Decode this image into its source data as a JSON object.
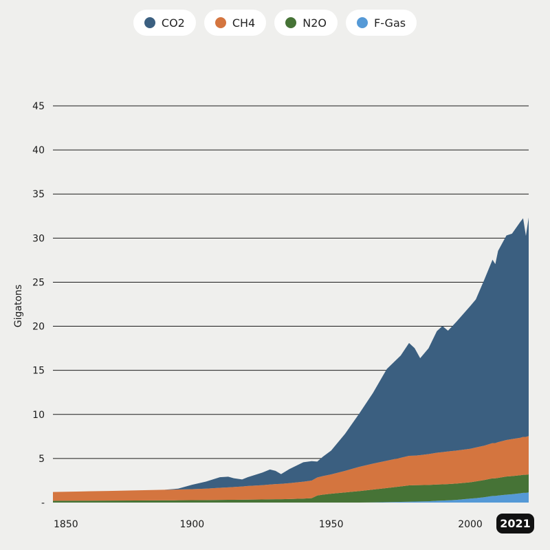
{
  "legend": [
    {
      "label": "CO2",
      "color": "#3b5f80"
    },
    {
      "label": "CH4",
      "color": "#d4753f"
    },
    {
      "label": "N2O",
      "color": "#467336"
    },
    {
      "label": "F-Gas",
      "color": "#5599d6"
    }
  ],
  "current_year": "2021",
  "chart_data": {
    "type": "area",
    "stacked": true,
    "title": "",
    "xlabel": "",
    "ylabel": "Gigatons",
    "xlim": [
      1850,
      2021
    ],
    "ylim": [
      0,
      45
    ],
    "yticks": [
      0,
      5,
      10,
      15,
      20,
      25,
      30,
      35,
      40,
      45
    ],
    "ytick_labels": [
      "-",
      "5",
      "10",
      "15",
      "20",
      "25",
      "30",
      "35",
      "40",
      "45"
    ],
    "xticks": [
      1850,
      1900,
      1950,
      2000
    ],
    "grid": "horizontal",
    "legend_position": "top-center",
    "x": [
      1850,
      1860,
      1870,
      1880,
      1890,
      1895,
      1900,
      1905,
      1910,
      1913,
      1915,
      1918,
      1920,
      1925,
      1928,
      1930,
      1932,
      1935,
      1940,
      1943,
      1945,
      1947,
      1950,
      1955,
      1960,
      1965,
      1970,
      1975,
      1978,
      1980,
      1982,
      1985,
      1988,
      1990,
      1992,
      1995,
      2000,
      2002,
      2005,
      2008,
      2009,
      2010,
      2013,
      2015,
      2018,
      2019,
      2020,
      2021
    ],
    "series": [
      {
        "name": "F-Gas",
        "values": [
          0,
          0,
          0,
          0,
          0,
          0,
          0,
          0,
          0,
          0,
          0,
          0,
          0,
          0,
          0,
          0,
          0,
          0,
          0,
          0,
          0,
          0,
          0,
          0,
          0,
          0.02,
          0.05,
          0.08,
          0.1,
          0.12,
          0.13,
          0.15,
          0.2,
          0.22,
          0.25,
          0.3,
          0.45,
          0.5,
          0.6,
          0.75,
          0.75,
          0.8,
          0.9,
          0.95,
          1.05,
          1.1,
          1.1,
          1.15
        ]
      },
      {
        "name": "N2O",
        "values": [
          0.2,
          0.21,
          0.22,
          0.23,
          0.25,
          0.26,
          0.27,
          0.28,
          0.3,
          0.31,
          0.31,
          0.32,
          0.33,
          0.35,
          0.37,
          0.38,
          0.38,
          0.4,
          0.45,
          0.5,
          0.8,
          0.9,
          1.0,
          1.15,
          1.3,
          1.45,
          1.6,
          1.75,
          1.85,
          1.85,
          1.85,
          1.85,
          1.85,
          1.85,
          1.85,
          1.85,
          1.85,
          1.9,
          1.95,
          2.0,
          2.0,
          2.0,
          2.05,
          2.05,
          2.05,
          2.05,
          2.05,
          2.05
        ]
      },
      {
        "name": "CH4",
        "values": [
          1.0,
          1.05,
          1.1,
          1.15,
          1.2,
          1.22,
          1.25,
          1.3,
          1.38,
          1.42,
          1.45,
          1.5,
          1.55,
          1.62,
          1.68,
          1.72,
          1.75,
          1.8,
          1.92,
          2.0,
          2.05,
          2.1,
          2.2,
          2.45,
          2.75,
          2.95,
          3.1,
          3.25,
          3.35,
          3.35,
          3.4,
          3.5,
          3.6,
          3.65,
          3.7,
          3.75,
          3.8,
          3.85,
          3.9,
          4.0,
          4.0,
          4.05,
          4.15,
          4.2,
          4.25,
          4.3,
          4.3,
          4.35
        ]
      },
      {
        "name": "CO2",
        "values": [
          0,
          0,
          0,
          0,
          0,
          0.1,
          0.5,
          0.8,
          1.2,
          1.2,
          1.0,
          0.8,
          1.0,
          1.4,
          1.7,
          1.5,
          1.1,
          1.6,
          2.2,
          2.2,
          1.8,
          2.2,
          2.7,
          4.2,
          6.0,
          8.0,
          10.4,
          11.6,
          12.8,
          12.2,
          11.0,
          12.0,
          13.8,
          14.3,
          13.7,
          14.6,
          16.2,
          16.8,
          18.8,
          20.8,
          20.3,
          21.7,
          23.2,
          23.3,
          24.5,
          24.8,
          22.8,
          24.8
        ]
      }
    ]
  }
}
